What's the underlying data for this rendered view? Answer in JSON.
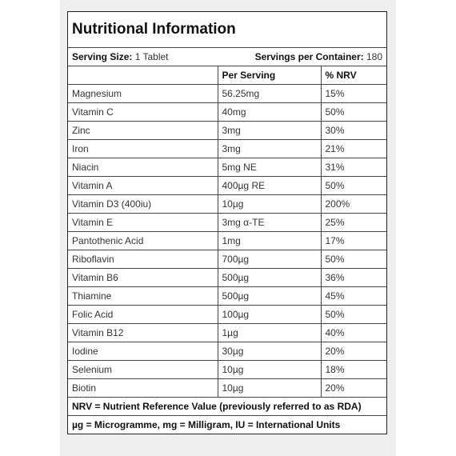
{
  "header": {
    "title": "Nutritional Information"
  },
  "serving": {
    "size_label": "Serving Size:",
    "size_value": "1 Tablet",
    "per_container_label": "Servings per Container:",
    "per_container_value": "180"
  },
  "table": {
    "columns": [
      "Per Serving",
      "% NRV"
    ],
    "rows": [
      [
        "Magnesium",
        "56.25mg",
        "15%"
      ],
      [
        "Vitamin C",
        "40mg",
        "50%"
      ],
      [
        "Zinc",
        "3mg",
        "30%"
      ],
      [
        "Iron",
        "3mg",
        "21%"
      ],
      [
        "Niacin",
        "5mg NE",
        "31%"
      ],
      [
        "Vitamin A",
        "400µg RE",
        "50%"
      ],
      [
        "Vitamin D3 (400iu)",
        "10µg",
        "200%"
      ],
      [
        "Vitamin E",
        "3mg α-TE",
        "25%"
      ],
      [
        "Pantothenic Acid",
        "1mg",
        "17%"
      ],
      [
        "Riboflavin",
        "700µg",
        "50%"
      ],
      [
        "Vitamin B6",
        "500µg",
        "36%"
      ],
      [
        "Thiamine",
        "500µg",
        "45%"
      ],
      [
        "Folic Acid",
        "100µg",
        "50%"
      ],
      [
        "Vitamin B12",
        "1µg",
        "40%"
      ],
      [
        "Iodine",
        "30µg",
        "20%"
      ],
      [
        "Selenium",
        "10µg",
        "18%"
      ],
      [
        "Biotin",
        "10µg",
        "20%"
      ]
    ]
  },
  "footnotes": [
    "NRV = Nutrient Reference Value (previously referred to as RDA)",
    "µg = Microgramme, mg = Milligram, IU = International Units"
  ]
}
